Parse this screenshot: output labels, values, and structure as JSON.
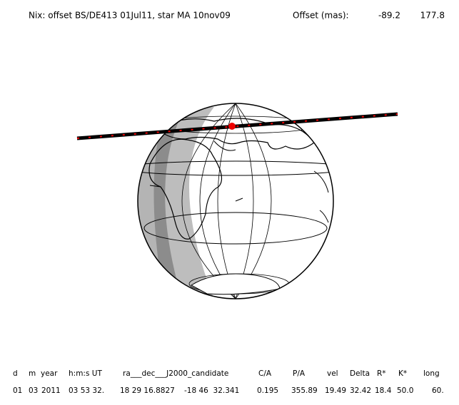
{
  "header": {
    "title": "Nix: offset BS/DE413 01Jul11, star MA 10nov09",
    "offset_label": "Offset (mas):",
    "offset_values": [
      "-89.2",
      "177.8"
    ]
  },
  "table": {
    "columns": [
      "d",
      "m",
      "year",
      "h:m:s UT",
      "ra___dec___J2000_candidate",
      "C/A",
      "P/A",
      "vel",
      "Delta",
      "R*",
      "K*",
      "long"
    ],
    "rows": [
      [
        "01",
        "03",
        "2011",
        "03 53 32.",
        "18 29 16.8827",
        "-18 46  32.341",
        "0.195",
        "355.89",
        "19.49",
        "32.42",
        "18.4",
        "50.0",
        "60."
      ]
    ]
  }
}
